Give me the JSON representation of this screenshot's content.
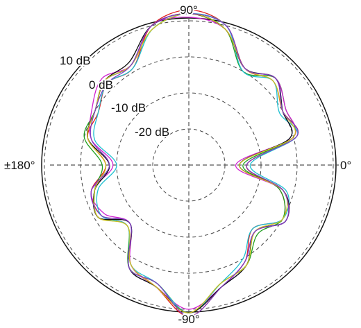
{
  "chart_data": {
    "type": "polar-line",
    "angular_ticks": [
      {
        "angle": 90,
        "label": "90°"
      },
      {
        "angle": 0,
        "label": "0°"
      },
      {
        "angle": -90,
        "label": "-90°"
      },
      {
        "angle": 180,
        "label": "±180°"
      }
    ],
    "radial_ticks": [
      {
        "db": 10,
        "label": "10 dB"
      },
      {
        "db": 0,
        "label": "0 dB"
      },
      {
        "db": -10,
        "label": "-10 dB"
      },
      {
        "db": -20,
        "label": "-20 dB"
      }
    ],
    "r_range_db": [
      -30,
      14
    ],
    "grid": true,
    "series": [
      {
        "color": "#1f1fd6",
        "points": [
          [
            0,
            -16
          ],
          [
            15,
            -1
          ],
          [
            30,
            0
          ],
          [
            45,
            4
          ],
          [
            60,
            1
          ],
          [
            75,
            10
          ],
          [
            90,
            12
          ],
          [
            105,
            10
          ],
          [
            120,
            2
          ],
          [
            135,
            3
          ],
          [
            150,
            0
          ],
          [
            165,
            -1
          ],
          [
            180,
            -8
          ],
          [
            195,
            -3
          ],
          [
            210,
            -1
          ],
          [
            225,
            -7
          ],
          [
            240,
            3
          ],
          [
            255,
            5
          ],
          [
            270,
            11
          ],
          [
            285,
            5
          ],
          [
            300,
            2
          ],
          [
            315,
            -4
          ],
          [
            330,
            1
          ],
          [
            345,
            -3
          ]
        ]
      },
      {
        "color": "#e02020",
        "points": [
          [
            0,
            -14
          ],
          [
            15,
            1
          ],
          [
            30,
            0
          ],
          [
            45,
            3
          ],
          [
            60,
            1
          ],
          [
            75,
            10
          ],
          [
            90,
            13
          ],
          [
            105,
            10
          ],
          [
            120,
            1
          ],
          [
            135,
            2
          ],
          [
            150,
            -1
          ],
          [
            165,
            -1
          ],
          [
            180,
            -7
          ],
          [
            195,
            -2
          ],
          [
            210,
            -2
          ],
          [
            225,
            -6
          ],
          [
            240,
            2
          ],
          [
            255,
            5
          ],
          [
            270,
            12
          ],
          [
            285,
            5
          ],
          [
            300,
            1
          ],
          [
            315,
            -5
          ],
          [
            330,
            0
          ],
          [
            345,
            -4
          ]
        ]
      },
      {
        "color": "#20a020",
        "points": [
          [
            0,
            -15
          ],
          [
            15,
            0
          ],
          [
            30,
            1
          ],
          [
            45,
            4
          ],
          [
            60,
            0
          ],
          [
            75,
            9
          ],
          [
            90,
            12
          ],
          [
            105,
            9
          ],
          [
            120,
            2
          ],
          [
            135,
            3
          ],
          [
            150,
            0
          ],
          [
            165,
            0
          ],
          [
            180,
            -6
          ],
          [
            195,
            -3
          ],
          [
            210,
            -1
          ],
          [
            225,
            -6
          ],
          [
            240,
            3
          ],
          [
            255,
            4
          ],
          [
            270,
            11
          ],
          [
            285,
            4
          ],
          [
            300,
            2
          ],
          [
            315,
            -3
          ],
          [
            330,
            0
          ],
          [
            345,
            -4
          ]
        ]
      },
      {
        "color": "#d020d0",
        "points": [
          [
            0,
            -17
          ],
          [
            15,
            0
          ],
          [
            30,
            1
          ],
          [
            45,
            4
          ],
          [
            60,
            1
          ],
          [
            75,
            9
          ],
          [
            90,
            11
          ],
          [
            105,
            10
          ],
          [
            120,
            2
          ],
          [
            135,
            4
          ],
          [
            150,
            1
          ],
          [
            165,
            -2
          ],
          [
            180,
            -9
          ],
          [
            195,
            -2
          ],
          [
            210,
            -3
          ],
          [
            225,
            -7
          ],
          [
            240,
            2
          ],
          [
            255,
            5
          ],
          [
            270,
            10
          ],
          [
            285,
            5
          ],
          [
            300,
            1
          ],
          [
            315,
            -4
          ],
          [
            330,
            1
          ],
          [
            345,
            -3
          ]
        ]
      },
      {
        "color": "#20c0d0",
        "points": [
          [
            0,
            -13
          ],
          [
            15,
            1
          ],
          [
            30,
            -1
          ],
          [
            45,
            3
          ],
          [
            60,
            0
          ],
          [
            75,
            10
          ],
          [
            90,
            12
          ],
          [
            105,
            9
          ],
          [
            120,
            1
          ],
          [
            135,
            2
          ],
          [
            150,
            -1
          ],
          [
            165,
            -3
          ],
          [
            180,
            -10
          ],
          [
            195,
            -4
          ],
          [
            210,
            -2
          ],
          [
            225,
            -6
          ],
          [
            240,
            2
          ],
          [
            255,
            4
          ],
          [
            270,
            11
          ],
          [
            285,
            4
          ],
          [
            300,
            0
          ],
          [
            315,
            -5
          ],
          [
            330,
            0
          ],
          [
            345,
            -2
          ]
        ]
      },
      {
        "color": "#111111",
        "points": [
          [
            0,
            -16
          ],
          [
            15,
            -1
          ],
          [
            30,
            0
          ],
          [
            45,
            4
          ],
          [
            60,
            1
          ],
          [
            75,
            9
          ],
          [
            90,
            12
          ],
          [
            105,
            10
          ],
          [
            120,
            3
          ],
          [
            135,
            3
          ],
          [
            150,
            0
          ],
          [
            165,
            -1
          ],
          [
            180,
            -8
          ],
          [
            195,
            -3
          ],
          [
            210,
            -1
          ],
          [
            225,
            -7
          ],
          [
            240,
            3
          ],
          [
            255,
            5
          ],
          [
            270,
            11
          ],
          [
            285,
            5
          ],
          [
            300,
            2
          ],
          [
            315,
            -4
          ],
          [
            330,
            1
          ],
          [
            345,
            -3
          ]
        ]
      },
      {
        "color": "#d0c020",
        "points": [
          [
            0,
            -16
          ],
          [
            15,
            0
          ],
          [
            30,
            0
          ],
          [
            45,
            3
          ],
          [
            60,
            1
          ],
          [
            75,
            9
          ],
          [
            90,
            12
          ],
          [
            105,
            9
          ],
          [
            120,
            2
          ],
          [
            135,
            3
          ],
          [
            150,
            0
          ],
          [
            165,
            -1
          ],
          [
            180,
            -7
          ],
          [
            195,
            -3
          ],
          [
            210,
            -1
          ],
          [
            225,
            -6
          ],
          [
            240,
            2
          ],
          [
            255,
            5
          ],
          [
            270,
            11
          ],
          [
            285,
            4
          ],
          [
            300,
            2
          ],
          [
            315,
            -4
          ],
          [
            330,
            0
          ],
          [
            345,
            -3
          ]
        ]
      },
      {
        "color": "#8040c0",
        "points": [
          [
            0,
            -14
          ],
          [
            15,
            1
          ],
          [
            30,
            0
          ],
          [
            45,
            4
          ],
          [
            60,
            1
          ],
          [
            75,
            10
          ],
          [
            90,
            12
          ],
          [
            105,
            10
          ],
          [
            120,
            2
          ],
          [
            135,
            2
          ],
          [
            150,
            0
          ],
          [
            165,
            -2
          ],
          [
            180,
            -8
          ],
          [
            195,
            -2
          ],
          [
            210,
            -2
          ],
          [
            225,
            -7
          ],
          [
            240,
            3
          ],
          [
            255,
            4
          ],
          [
            270,
            12
          ],
          [
            285,
            5
          ],
          [
            300,
            1
          ],
          [
            315,
            -4
          ],
          [
            330,
            1
          ],
          [
            345,
            -3
          ]
        ]
      }
    ]
  }
}
